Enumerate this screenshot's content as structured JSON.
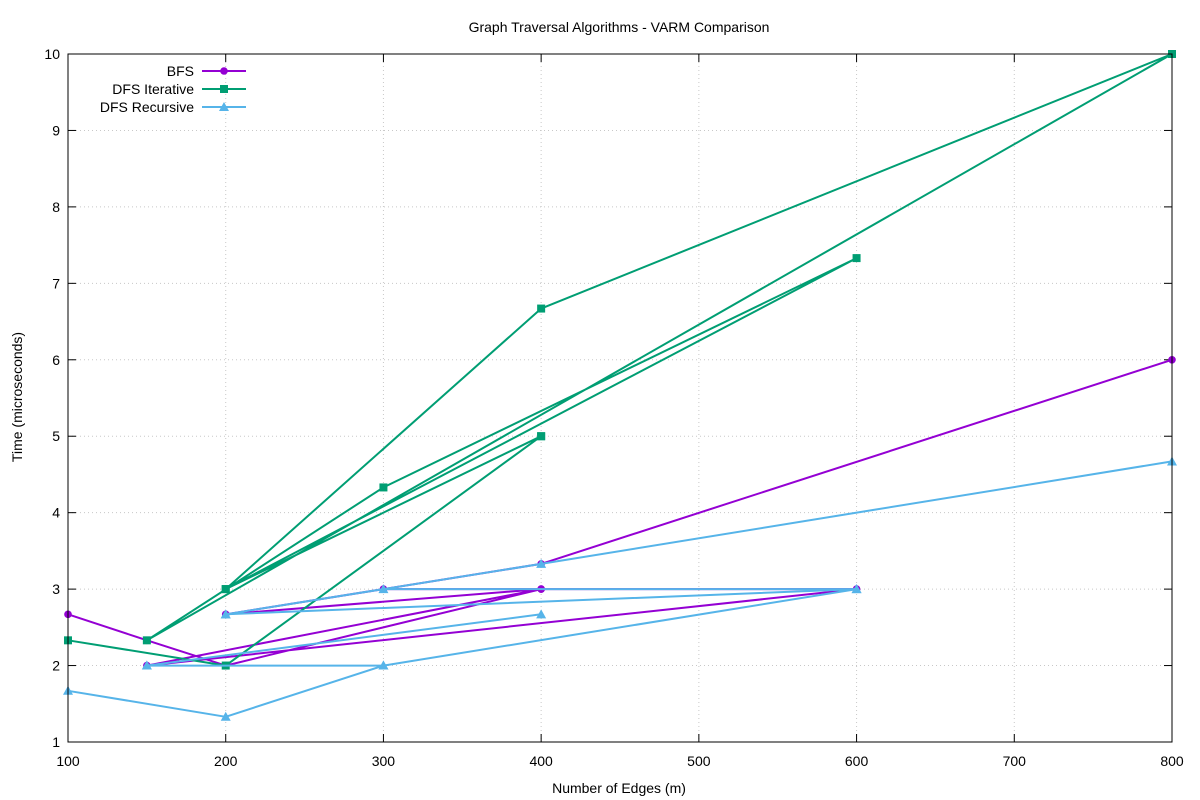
{
  "chart_data": {
    "type": "line",
    "title": "Graph Traversal Algorithms - VARM Comparison",
    "xlabel": "Number of Edges (m)",
    "ylabel": "Time (microseconds)",
    "xlim": [
      100,
      800
    ],
    "ylim": [
      1,
      10
    ],
    "xticks": [
      100,
      200,
      300,
      400,
      500,
      600,
      700,
      800
    ],
    "yticks": [
      1,
      2,
      3,
      4,
      5,
      6,
      7,
      8,
      9,
      10
    ],
    "grid": true,
    "legend_position": "top-left",
    "series": [
      {
        "name": "BFS",
        "color": "#9400d3",
        "marker": "circle",
        "points": [
          [
            100,
            2.67
          ],
          [
            150,
            2.33
          ],
          [
            200,
            2.0
          ],
          [
            400,
            3.0
          ],
          [
            300,
            3.0
          ],
          [
            600,
            3.0
          ],
          [
            150,
            2.0
          ],
          [
            400,
            3.0
          ],
          [
            200,
            2.67
          ],
          [
            400,
            3.33
          ],
          [
            800,
            6.0
          ]
        ]
      },
      {
        "name": "DFS Iterative",
        "color": "#009e73",
        "marker": "square",
        "points": [
          [
            100,
            2.33
          ],
          [
            200,
            2.0
          ],
          [
            400,
            5.0
          ],
          [
            200,
            3.0
          ],
          [
            400,
            6.67
          ],
          [
            800,
            10.0
          ],
          [
            150,
            2.33
          ],
          [
            300,
            4.33
          ],
          [
            600,
            7.33
          ],
          [
            200,
            3.0
          ],
          [
            400,
            5.0
          ]
        ]
      },
      {
        "name": "DFS Recursive",
        "color": "#56b4e9",
        "marker": "triangle",
        "points": [
          [
            100,
            1.67
          ],
          [
            200,
            1.33
          ],
          [
            300,
            2.0
          ],
          [
            150,
            2.0
          ],
          [
            400,
            2.67
          ],
          [
            150,
            2.0
          ],
          [
            300,
            2.0
          ],
          [
            600,
            3.0
          ],
          [
            200,
            2.67
          ],
          [
            300,
            3.0
          ],
          [
            600,
            3.0
          ],
          [
            200,
            2.67
          ],
          [
            400,
            3.33
          ],
          [
            800,
            4.67
          ]
        ]
      }
    ]
  }
}
